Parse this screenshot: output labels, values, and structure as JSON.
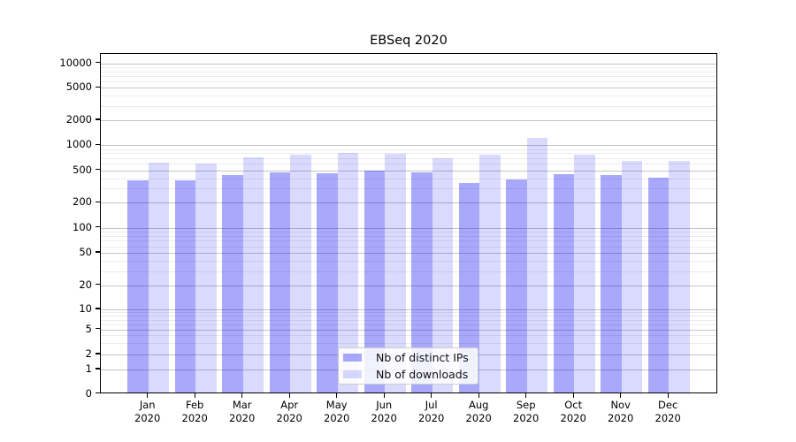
{
  "title": "EBSeq 2020",
  "legend": {
    "items": [
      {
        "label": "Nb of distinct IPs",
        "color": "rgba(10,10,245,0.35)",
        "color_hex": "#a9a9f8"
      },
      {
        "label": "Nb of downloads",
        "color": "rgba(10,10,245,0.15)",
        "color_hex": "#dbdbfc"
      }
    ]
  },
  "chart_data": {
    "type": "bar",
    "title": "EBSeq 2020",
    "categories": [
      "Jan 2020",
      "Feb 2020",
      "Mar 2020",
      "Apr 2020",
      "May 2020",
      "Jun 2020",
      "Jul 2020",
      "Aug 2020",
      "Sep 2020",
      "Oct 2020",
      "Nov 2020",
      "Dec 2020"
    ],
    "series": [
      {
        "name": "Nb of distinct IPs",
        "color": "rgba(10,10,245,0.35)",
        "values": [
          380,
          380,
          437,
          470,
          456,
          500,
          478,
          350,
          390,
          448,
          433,
          410
        ]
      },
      {
        "name": "Nb of downloads",
        "color": "rgba(10,10,245,0.15)",
        "values": [
          620,
          600,
          715,
          775,
          805,
          798,
          695,
          775,
          1220,
          770,
          655,
          655
        ]
      }
    ],
    "yscale": "symlog",
    "yticks": [
      0,
      1,
      2,
      5,
      10,
      20,
      50,
      100,
      200,
      500,
      1000,
      2000,
      5000,
      10000
    ],
    "ylim": [
      0,
      13000
    ],
    "grid": true,
    "legend_position": "lower center"
  }
}
